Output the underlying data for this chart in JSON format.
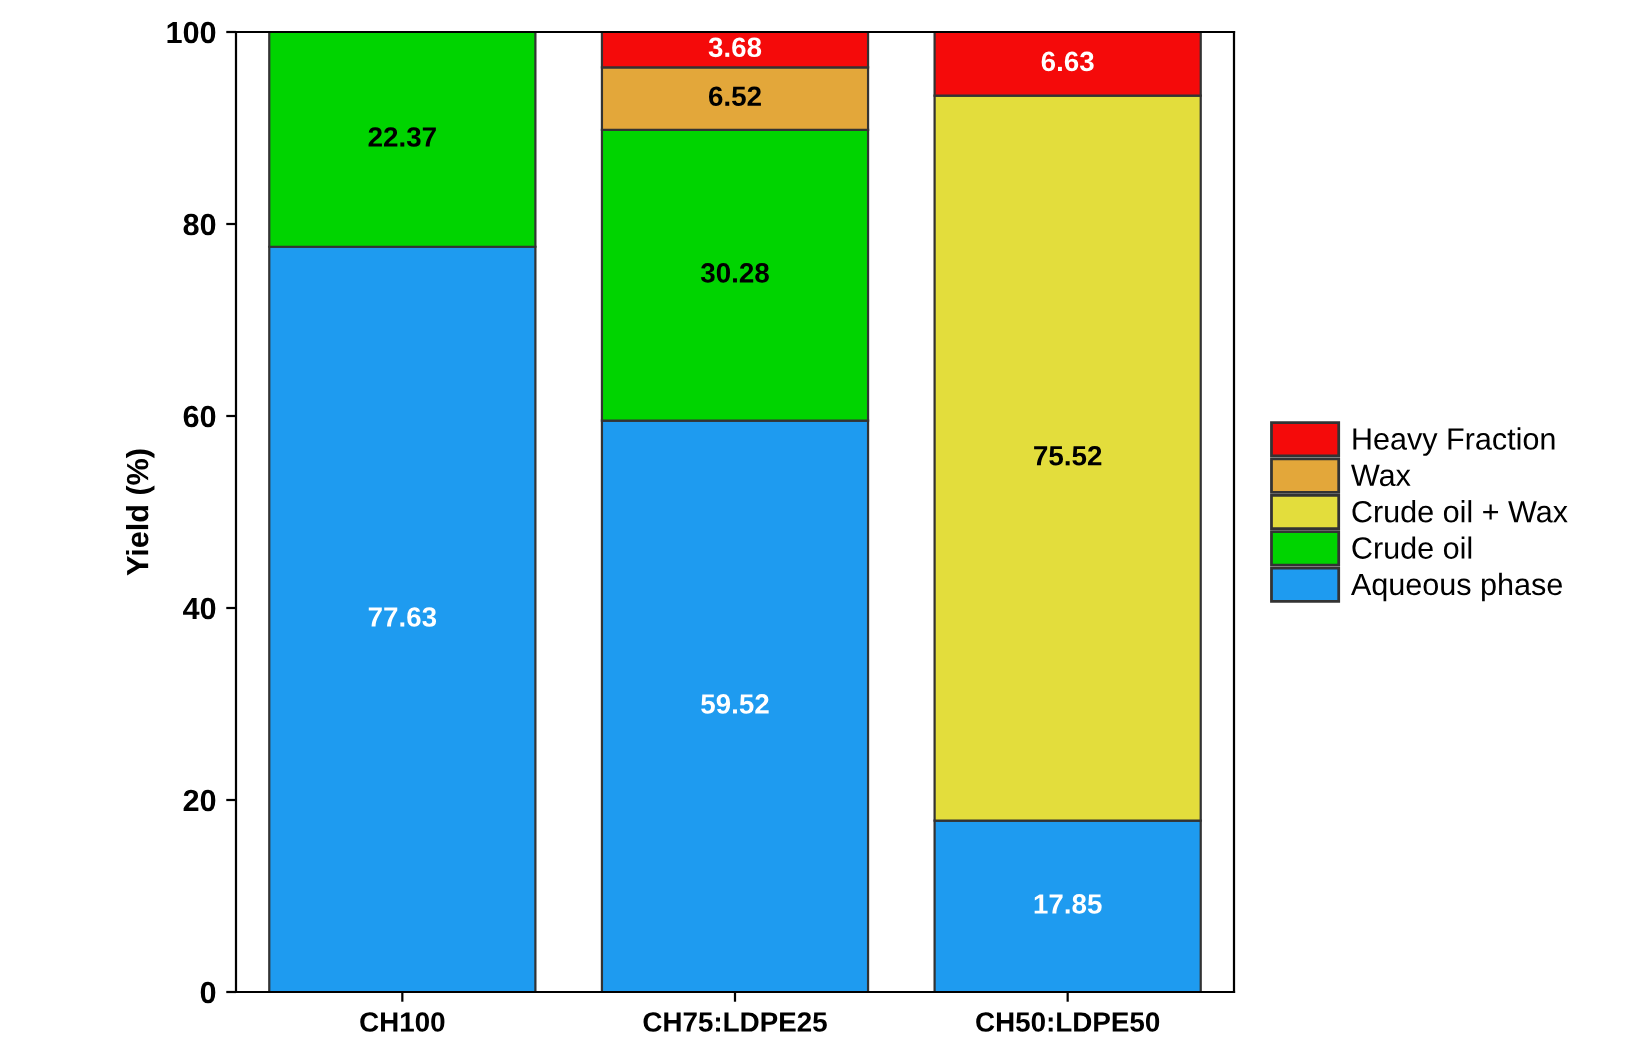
{
  "chart_data": {
    "type": "bar",
    "stacked": true,
    "ylabel": "Yield (%)",
    "categories": [
      "CH100",
      "CH75:LDPE25",
      "CH50:LDPE50"
    ],
    "series": [
      {
        "name": "Aqueous phase",
        "color": "#1e9bf0",
        "values": [
          77.63,
          59.52,
          17.85
        ]
      },
      {
        "name": "Crude oil",
        "color": "#00d400",
        "values": [
          22.37,
          30.28,
          null
        ]
      },
      {
        "name": "Crude oil + Wax",
        "color": "#e3dd3c",
        "values": [
          null,
          null,
          75.52
        ]
      },
      {
        "name": "Wax",
        "color": "#e3a73a",
        "values": [
          null,
          6.52,
          null
        ]
      },
      {
        "name": "Heavy Fraction",
        "color": "#f50a0a",
        "values": [
          null,
          3.68,
          6.63
        ]
      }
    ],
    "ylim": [
      0,
      100
    ],
    "yticks": [
      0,
      20,
      40,
      60,
      80,
      100
    ],
    "data_labels": true,
    "legend": "right",
    "grid": false
  }
}
